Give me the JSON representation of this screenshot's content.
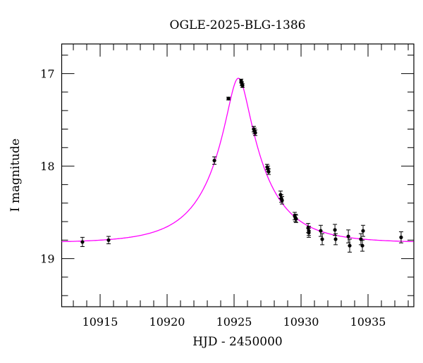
{
  "chart_data": {
    "type": "scatter",
    "title": "OGLE-2025-BLG-1386",
    "xlabel": "HJD - 2450000",
    "ylabel": "I magnitude",
    "xlim": [
      10912.13,
      10938.42
    ],
    "ylim": [
      19.52,
      16.68
    ],
    "y_inverted": true,
    "grid": false,
    "x_major_ticks": [
      10915,
      10920,
      10925,
      10930,
      10935
    ],
    "x_tick_labels": [
      "10915",
      "10920",
      "10925",
      "10930",
      "10935"
    ],
    "x_minor_step": 1,
    "y_major_ticks": [
      17,
      18,
      19
    ],
    "y_tick_labels": [
      "17",
      "18",
      "19"
    ],
    "y_minor_step": 0.2,
    "colors": {
      "points": "#000000",
      "model": "#ff00ff"
    },
    "points": {
      "x": [
        10913.68,
        10915.63,
        10923.53,
        10924.58,
        10925.53,
        10925.58,
        10925.63,
        10926.47,
        10926.53,
        10926.58,
        10927.47,
        10927.53,
        10927.58,
        10928.47,
        10928.53,
        10928.58,
        10929.53,
        10929.58,
        10929.63,
        10930.53,
        10930.58,
        10930.58,
        10931.47,
        10931.58,
        10932.53,
        10932.58,
        10933.53,
        10933.63,
        10934.47,
        10934.58,
        10934.63,
        10937.47
      ],
      "y": [
        18.82,
        18.8,
        17.94,
        17.27,
        17.08,
        17.11,
        17.13,
        17.6,
        17.62,
        17.64,
        18.01,
        18.03,
        18.06,
        18.31,
        18.35,
        18.37,
        18.54,
        18.56,
        18.57,
        18.67,
        18.7,
        18.72,
        18.7,
        18.79,
        18.69,
        18.79,
        18.76,
        18.86,
        18.79,
        18.86,
        18.7,
        18.77
      ],
      "err": [
        0.05,
        0.04,
        0.04,
        0.015,
        0.02,
        0.02,
        0.02,
        0.03,
        0.03,
        0.03,
        0.03,
        0.03,
        0.03,
        0.04,
        0.04,
        0.04,
        0.04,
        0.04,
        0.04,
        0.05,
        0.05,
        0.05,
        0.06,
        0.06,
        0.06,
        0.06,
        0.07,
        0.07,
        0.06,
        0.06,
        0.06,
        0.06
      ]
    },
    "model": {
      "type": "PSPL",
      "t0": 10925.32,
      "tE": 4.0,
      "u0": 0.197,
      "baseline": 18.83
    }
  }
}
